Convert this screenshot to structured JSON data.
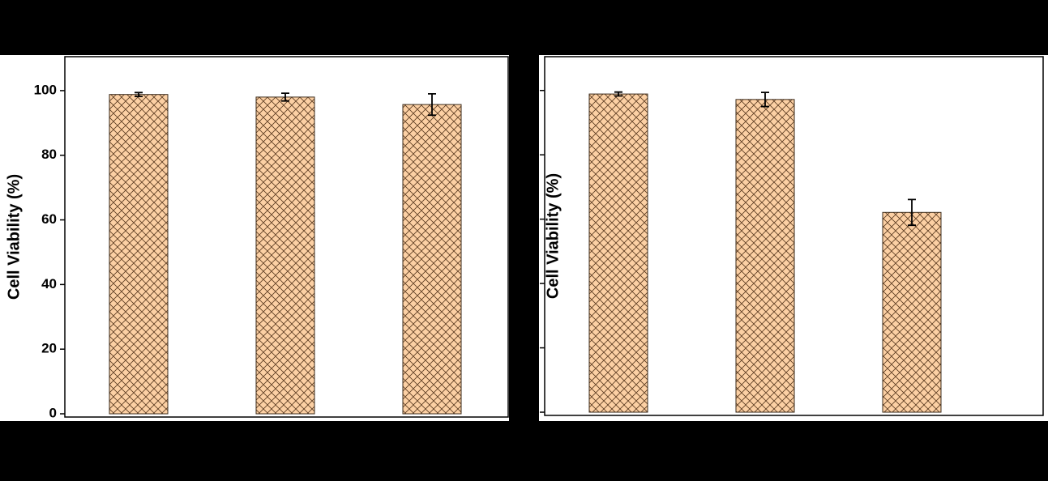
{
  "chart_data": [
    {
      "type": "bar",
      "y_label": "Cell Viability (%)",
      "categories": [
        null,
        null,
        null
      ],
      "values": [
        98.8,
        98.0,
        95.7
      ],
      "errors": [
        0.6,
        1.2,
        3.3
      ],
      "color": "#fcd0a4",
      "ylim": [
        -1,
        110.5
      ],
      "yticks": [
        0,
        20,
        40,
        60,
        80,
        100
      ]
    },
    {
      "type": "bar",
      "y_label": "Cell Viability (%)",
      "categories": [
        null,
        null,
        null
      ],
      "values": [
        98.9,
        97.2,
        62.1
      ],
      "errors": [
        0.6,
        2.2,
        4.0
      ],
      "color": "#fcd0a4",
      "ylim": [
        -1,
        110.5
      ],
      "yticks": [
        0,
        20,
        40,
        60,
        80,
        100
      ]
    }
  ]
}
